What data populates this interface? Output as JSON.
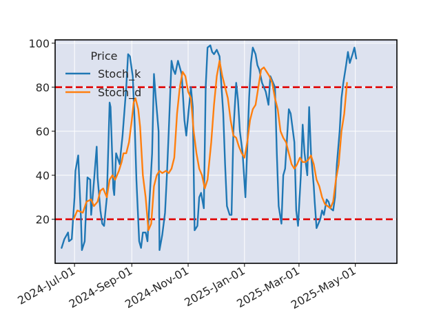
{
  "chart_data": {
    "type": "line",
    "title": "",
    "xlabel": "",
    "ylabel": "",
    "legend": {
      "title": "Price",
      "placement": "top-left"
    },
    "x_range": [
      "2024-06-10",
      "2025-06-15"
    ],
    "ylim": [
      0,
      101.5
    ],
    "grid": true,
    "yticks": [
      20,
      40,
      60,
      80,
      100
    ],
    "xticks": [
      {
        "date": "2024-07-01",
        "label": "2024-Jul-01"
      },
      {
        "date": "2024-09-01",
        "label": "2024-Sep-01"
      },
      {
        "date": "2024-11-01",
        "label": "2024-Nov-01"
      },
      {
        "date": "2025-01-01",
        "label": "2025-Jan-01"
      },
      {
        "date": "2025-03-01",
        "label": "2025-Mar-01"
      },
      {
        "date": "2025-05-01",
        "label": "2025-May-01"
      }
    ],
    "reference_lines": [
      {
        "y": 80,
        "color": "#e00000",
        "style": "dashed"
      },
      {
        "y": 20,
        "color": "#e00000",
        "style": "dashed"
      }
    ],
    "series": [
      {
        "name": "Stoch_k",
        "color": "#1f77b4",
        "points": [
          [
            "2024-06-17",
            7
          ],
          [
            "2024-06-20",
            11
          ],
          [
            "2024-06-24",
            14
          ],
          [
            "2024-06-25",
            10
          ],
          [
            "2024-06-28",
            11
          ],
          [
            "2024-07-01",
            30
          ],
          [
            "2024-07-02",
            42
          ],
          [
            "2024-07-05",
            49
          ],
          [
            "2024-07-08",
            20
          ],
          [
            "2024-07-09",
            6
          ],
          [
            "2024-07-12",
            10
          ],
          [
            "2024-07-15",
            39
          ],
          [
            "2024-07-18",
            38
          ],
          [
            "2024-07-19",
            22
          ],
          [
            "2024-07-22",
            37
          ],
          [
            "2024-07-25",
            53
          ],
          [
            "2024-07-26",
            39
          ],
          [
            "2024-07-29",
            24
          ],
          [
            "2024-07-31",
            18
          ],
          [
            "2024-08-02",
            17
          ],
          [
            "2024-08-05",
            30
          ],
          [
            "2024-08-08",
            73
          ],
          [
            "2024-08-09",
            71
          ],
          [
            "2024-08-12",
            34
          ],
          [
            "2024-08-13",
            31
          ],
          [
            "2024-08-15",
            50
          ],
          [
            "2024-08-19",
            45
          ],
          [
            "2024-08-20",
            50
          ],
          [
            "2024-08-22",
            58
          ],
          [
            "2024-08-26",
            80
          ],
          [
            "2024-08-28",
            95
          ],
          [
            "2024-08-30",
            94
          ],
          [
            "2024-09-02",
            85
          ],
          [
            "2024-09-04",
            65
          ],
          [
            "2024-09-06",
            38
          ],
          [
            "2024-09-09",
            10
          ],
          [
            "2024-09-11",
            7
          ],
          [
            "2024-09-13",
            14
          ],
          [
            "2024-09-16",
            14
          ],
          [
            "2024-09-18",
            10
          ],
          [
            "2024-09-20",
            27
          ],
          [
            "2024-09-23",
            50
          ],
          [
            "2024-09-25",
            86
          ],
          [
            "2024-09-27",
            75
          ],
          [
            "2024-09-30",
            60
          ],
          [
            "2024-10-01",
            6
          ],
          [
            "2024-10-04",
            13
          ],
          [
            "2024-10-07",
            23
          ],
          [
            "2024-10-09",
            40
          ],
          [
            "2024-10-11",
            60
          ],
          [
            "2024-10-14",
            92
          ],
          [
            "2024-10-16",
            88
          ],
          [
            "2024-10-18",
            86
          ],
          [
            "2024-10-21",
            92
          ],
          [
            "2024-10-23",
            89
          ],
          [
            "2024-10-25",
            86
          ],
          [
            "2024-10-28",
            65
          ],
          [
            "2024-10-30",
            58
          ],
          [
            "2024-11-01",
            67
          ],
          [
            "2024-11-04",
            80
          ],
          [
            "2024-11-06",
            71
          ],
          [
            "2024-11-08",
            15
          ],
          [
            "2024-11-11",
            17
          ],
          [
            "2024-11-13",
            30
          ],
          [
            "2024-11-15",
            32
          ],
          [
            "2024-11-18",
            25
          ],
          [
            "2024-11-20",
            80
          ],
          [
            "2024-11-22",
            98
          ],
          [
            "2024-11-25",
            99
          ],
          [
            "2024-11-27",
            96
          ],
          [
            "2024-11-29",
            95
          ],
          [
            "2024-12-02",
            97
          ],
          [
            "2024-12-05",
            94
          ],
          [
            "2024-12-09",
            68
          ],
          [
            "2024-12-11",
            45
          ],
          [
            "2024-12-13",
            26
          ],
          [
            "2024-12-16",
            22
          ],
          [
            "2024-12-18",
            22
          ],
          [
            "2024-12-20",
            60
          ],
          [
            "2024-12-23",
            82
          ],
          [
            "2024-12-25",
            74
          ],
          [
            "2024-12-27",
            60
          ],
          [
            "2024-12-30",
            50
          ],
          [
            "2025-01-02",
            30
          ],
          [
            "2025-01-06",
            75
          ],
          [
            "2025-01-08",
            91
          ],
          [
            "2025-01-10",
            98
          ],
          [
            "2025-01-13",
            95
          ],
          [
            "2025-01-15",
            90
          ],
          [
            "2025-01-17",
            88
          ],
          [
            "2025-01-20",
            82
          ],
          [
            "2025-01-22",
            80
          ],
          [
            "2025-01-24",
            78
          ],
          [
            "2025-01-27",
            72
          ],
          [
            "2025-01-29",
            85
          ],
          [
            "2025-02-03",
            80
          ],
          [
            "2025-02-05",
            50
          ],
          [
            "2025-02-07",
            26
          ],
          [
            "2025-02-10",
            18
          ],
          [
            "2025-02-12",
            40
          ],
          [
            "2025-02-14",
            43
          ],
          [
            "2025-02-18",
            70
          ],
          [
            "2025-02-20",
            68
          ],
          [
            "2025-02-24",
            55
          ],
          [
            "2025-02-26",
            24
          ],
          [
            "2025-02-28",
            17
          ],
          [
            "2025-03-03",
            40
          ],
          [
            "2025-03-05",
            63
          ],
          [
            "2025-03-07",
            50
          ],
          [
            "2025-03-10",
            40
          ],
          [
            "2025-03-12",
            71
          ],
          [
            "2025-03-14",
            50
          ],
          [
            "2025-03-17",
            35
          ],
          [
            "2025-03-18",
            28
          ],
          [
            "2025-03-20",
            16
          ],
          [
            "2025-03-24",
            20
          ],
          [
            "2025-03-26",
            24
          ],
          [
            "2025-03-28",
            22
          ],
          [
            "2025-03-31",
            29
          ],
          [
            "2025-04-02",
            28
          ],
          [
            "2025-04-04",
            25
          ],
          [
            "2025-04-07",
            24
          ],
          [
            "2025-04-09",
            30
          ],
          [
            "2025-04-11",
            45
          ],
          [
            "2025-04-14",
            60
          ],
          [
            "2025-04-16",
            75
          ],
          [
            "2025-04-18",
            82
          ],
          [
            "2025-04-21",
            90
          ],
          [
            "2025-04-23",
            96
          ],
          [
            "2025-04-25",
            91
          ],
          [
            "2025-04-28",
            95
          ],
          [
            "2025-04-30",
            98
          ],
          [
            "2025-05-02",
            93
          ]
        ]
      },
      {
        "name": "Stoch_d",
        "color": "#ff7f0e",
        "points": [
          [
            "2024-06-30",
            20
          ],
          [
            "2024-07-04",
            24
          ],
          [
            "2024-07-10",
            23
          ],
          [
            "2024-07-14",
            28
          ],
          [
            "2024-07-19",
            29
          ],
          [
            "2024-07-22",
            26
          ],
          [
            "2024-07-26",
            28
          ],
          [
            "2024-07-29",
            33
          ],
          [
            "2024-08-01",
            34
          ],
          [
            "2024-08-05",
            30
          ],
          [
            "2024-08-08",
            38
          ],
          [
            "2024-08-11",
            40
          ],
          [
            "2024-08-14",
            38
          ],
          [
            "2024-08-18",
            42
          ],
          [
            "2024-08-21",
            46
          ],
          [
            "2024-08-23",
            50
          ],
          [
            "2024-08-26",
            50
          ],
          [
            "2024-08-29",
            55
          ],
          [
            "2024-09-01",
            65
          ],
          [
            "2024-09-03",
            73
          ],
          [
            "2024-09-05",
            75
          ],
          [
            "2024-09-08",
            70
          ],
          [
            "2024-09-10",
            62
          ],
          [
            "2024-09-13",
            40
          ],
          [
            "2024-09-16",
            30
          ],
          [
            "2024-09-19",
            15
          ],
          [
            "2024-09-22",
            18
          ],
          [
            "2024-09-25",
            35
          ],
          [
            "2024-09-28",
            40
          ],
          [
            "2024-10-01",
            42
          ],
          [
            "2024-10-04",
            41
          ],
          [
            "2024-10-08",
            42
          ],
          [
            "2024-10-11",
            41
          ],
          [
            "2024-10-14",
            43
          ],
          [
            "2024-10-17",
            48
          ],
          [
            "2024-10-20",
            68
          ],
          [
            "2024-10-23",
            80
          ],
          [
            "2024-10-26",
            87
          ],
          [
            "2024-10-29",
            85
          ],
          [
            "2024-11-01",
            78
          ],
          [
            "2024-11-04",
            75
          ],
          [
            "2024-11-07",
            60
          ],
          [
            "2024-11-10",
            50
          ],
          [
            "2024-11-13",
            43
          ],
          [
            "2024-11-16",
            40
          ],
          [
            "2024-11-19",
            34
          ],
          [
            "2024-11-22",
            38
          ],
          [
            "2024-11-26",
            55
          ],
          [
            "2024-11-29",
            72
          ],
          [
            "2024-12-02",
            85
          ],
          [
            "2024-12-05",
            92
          ],
          [
            "2024-12-08",
            85
          ],
          [
            "2024-12-11",
            80
          ],
          [
            "2024-12-14",
            75
          ],
          [
            "2024-12-17",
            65
          ],
          [
            "2024-12-20",
            58
          ],
          [
            "2024-12-23",
            57
          ],
          [
            "2024-12-26",
            53
          ],
          [
            "2024-12-29",
            50
          ],
          [
            "2025-01-01",
            48
          ],
          [
            "2025-01-04",
            55
          ],
          [
            "2025-01-07",
            65
          ],
          [
            "2025-01-10",
            70
          ],
          [
            "2025-01-13",
            72
          ],
          [
            "2025-01-16",
            80
          ],
          [
            "2025-01-19",
            88
          ],
          [
            "2025-01-22",
            89
          ],
          [
            "2025-01-25",
            87
          ],
          [
            "2025-01-28",
            85
          ],
          [
            "2025-01-31",
            82
          ],
          [
            "2025-02-03",
            75
          ],
          [
            "2025-02-06",
            70
          ],
          [
            "2025-02-09",
            60
          ],
          [
            "2025-02-12",
            57
          ],
          [
            "2025-02-15",
            55
          ],
          [
            "2025-02-18",
            50
          ],
          [
            "2025-02-21",
            45
          ],
          [
            "2025-02-24",
            43
          ],
          [
            "2025-02-27",
            45
          ],
          [
            "2025-03-02",
            48
          ],
          [
            "2025-03-05",
            46
          ],
          [
            "2025-03-08",
            46
          ],
          [
            "2025-03-11",
            47
          ],
          [
            "2025-03-14",
            49
          ],
          [
            "2025-03-17",
            45
          ],
          [
            "2025-03-20",
            38
          ],
          [
            "2025-03-23",
            35
          ],
          [
            "2025-03-26",
            30
          ],
          [
            "2025-03-29",
            27
          ],
          [
            "2025-04-01",
            26
          ],
          [
            "2025-04-04",
            25
          ],
          [
            "2025-04-07",
            28
          ],
          [
            "2025-04-10",
            38
          ],
          [
            "2025-04-13",
            45
          ],
          [
            "2025-04-16",
            60
          ],
          [
            "2025-04-19",
            68
          ],
          [
            "2025-04-22",
            82
          ]
        ]
      }
    ]
  }
}
